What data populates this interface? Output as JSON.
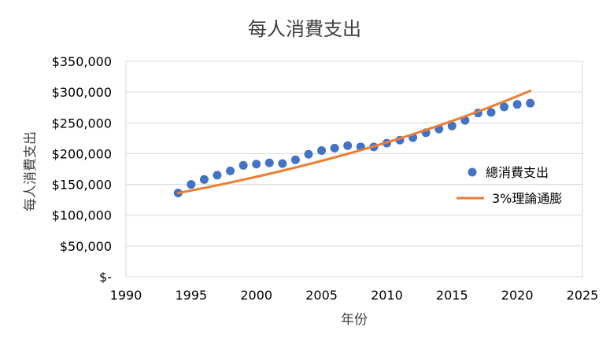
{
  "chart_data": {
    "type": "scatter",
    "title": "每人消費支出",
    "xlabel": "年份",
    "ylabel": "每人消費支出",
    "xlim": [
      1990,
      2025
    ],
    "ylim": [
      0,
      350000
    ],
    "x_ticks": [
      "1990",
      "1995",
      "2000",
      "2005",
      "2010",
      "2015",
      "2020",
      "2025"
    ],
    "y_ticks": [
      "$-",
      "$50,000",
      "$100,000",
      "$150,000",
      "$200,000",
      "$250,000",
      "$300,000",
      "$350,000"
    ],
    "grid": true,
    "legend_position": "right",
    "series": [
      {
        "name": "總消費支出",
        "type": "scatter",
        "color": "#4472C4",
        "x": [
          1994,
          1995,
          1996,
          1997,
          1998,
          1999,
          2000,
          2001,
          2002,
          2003,
          2004,
          2005,
          2006,
          2007,
          2008,
          2009,
          2010,
          2011,
          2012,
          2013,
          2014,
          2015,
          2016,
          2017,
          2018,
          2019,
          2020,
          2021
        ],
        "y": [
          136000,
          150000,
          158000,
          165000,
          172000,
          181000,
          183000,
          185000,
          184000,
          190000,
          199000,
          205000,
          209000,
          213000,
          211000,
          211000,
          217000,
          222000,
          226000,
          234000,
          240000,
          245000,
          254000,
          266000,
          267000,
          276000,
          280000,
          282000
        ]
      },
      {
        "name": "3%理論通膨",
        "type": "line",
        "color": "#ED7D31",
        "x": [
          1994,
          1995,
          1996,
          1997,
          1998,
          1999,
          2000,
          2001,
          2002,
          2003,
          2004,
          2005,
          2006,
          2007,
          2008,
          2009,
          2010,
          2011,
          2012,
          2013,
          2014,
          2015,
          2016,
          2017,
          2018,
          2019,
          2020,
          2021
        ],
        "y": [
          136000,
          140080,
          144282,
          148611,
          153069,
          157661,
          162391,
          167263,
          172281,
          177449,
          182773,
          188256,
          193903,
          199721,
          205712,
          211884,
          218240,
          224788,
          231531,
          238477,
          245632,
          253001,
          260591,
          268408,
          276461,
          284754,
          293297,
          302096
        ]
      }
    ]
  }
}
